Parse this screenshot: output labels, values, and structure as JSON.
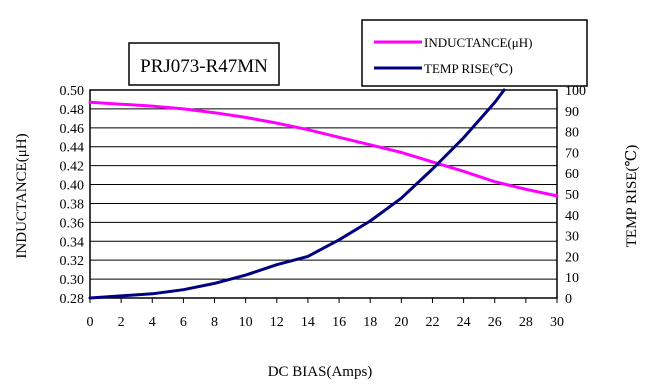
{
  "chart_data": {
    "type": "line",
    "part_number": "PRJ073-R47MN",
    "xlabel": "DC BIAS(Amps)",
    "ylabel_left": "INDUCTANCE(μH)",
    "ylabel_right": "TEMP RISE(℃)",
    "x_ticks": [
      "0",
      "2",
      "4",
      "6",
      "8",
      "10",
      "12",
      "14",
      "16",
      "18",
      "20",
      "22",
      "24",
      "26",
      "28",
      "30"
    ],
    "y_left_ticks": [
      "0.28",
      "0.30",
      "0.32",
      "0.34",
      "0.36",
      "0.38",
      "0.40",
      "0.42",
      "0.44",
      "0.46",
      "0.48",
      "0.50"
    ],
    "y_right_ticks": [
      "0",
      "10",
      "20",
      "30",
      "40",
      "50",
      "60",
      "70",
      "80",
      "90",
      "100"
    ],
    "xlim": [
      0,
      30
    ],
    "ylim_left": [
      0.28,
      0.5
    ],
    "ylim_right": [
      0,
      100
    ],
    "grid": "horizontal",
    "legend_position": "top-right",
    "series": [
      {
        "name": "INDUCTANCE(μH)",
        "axis": "left",
        "color": "#ff00ff",
        "x": [
          0,
          2,
          4,
          6,
          8,
          10,
          12,
          14,
          16,
          18,
          20,
          22,
          24,
          26,
          28,
          30
        ],
        "values": [
          0.487,
          0.485,
          0.483,
          0.48,
          0.476,
          0.471,
          0.465,
          0.458,
          0.45,
          0.442,
          0.434,
          0.424,
          0.414,
          0.403,
          0.395,
          0.388
        ]
      },
      {
        "name": "TEMP RISE(℃)",
        "axis": "right",
        "color": "#000080",
        "x": [
          0,
          2,
          4,
          6,
          8,
          10,
          12,
          14,
          16,
          18,
          20,
          22,
          24,
          26,
          26.6
        ],
        "values": [
          0,
          1,
          2,
          4,
          7,
          11,
          16,
          20,
          28,
          37,
          48,
          62,
          77,
          94,
          100
        ]
      }
    ]
  }
}
